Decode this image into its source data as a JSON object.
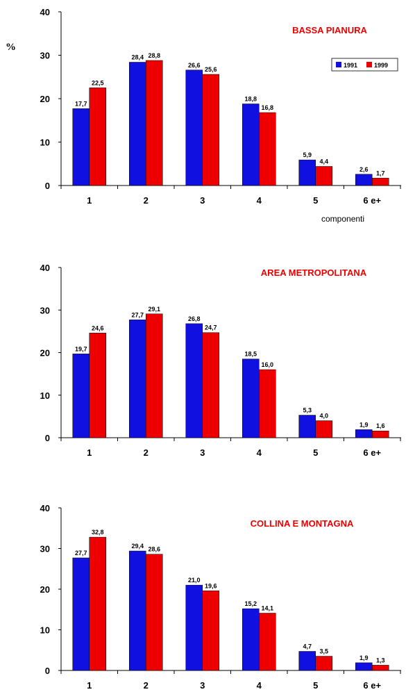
{
  "y_unit_label": "%",
  "x_axis_label": "componenti",
  "legend": {
    "entries": [
      "1991",
      "1999"
    ],
    "colors": [
      "#1010e0",
      "#ee0000"
    ]
  },
  "chart_data": [
    {
      "type": "bar",
      "title": "BASSA PIANURA",
      "categories": [
        "1",
        "2",
        "3",
        "4",
        "5",
        "6 e+"
      ],
      "series": [
        {
          "name": "1991",
          "color": "#1010e0",
          "values": [
            17.7,
            28.4,
            26.6,
            18.8,
            5.9,
            2.6
          ]
        },
        {
          "name": "1999",
          "color": "#ee0000",
          "values": [
            22.5,
            28.8,
            25.6,
            16.8,
            4.4,
            1.7
          ]
        }
      ],
      "data_labels": [
        [
          "17,7",
          "28,4",
          "26,6",
          "18,8",
          "5,9",
          "2,6"
        ],
        [
          "22,5",
          "28,8",
          "25,6",
          "16,8",
          "4,4",
          "1,7"
        ]
      ],
      "yticks": [
        "0",
        "10",
        "20",
        "30",
        "40"
      ],
      "ylim": [
        0,
        40
      ],
      "grid": false,
      "legend_position": "top-right"
    },
    {
      "type": "bar",
      "title": "AREA METROPOLITANA",
      "categories": [
        "1",
        "2",
        "3",
        "4",
        "5",
        "6 e+"
      ],
      "series": [
        {
          "name": "1991",
          "color": "#1010e0",
          "values": [
            19.7,
            27.7,
            26.8,
            18.5,
            5.3,
            1.9
          ]
        },
        {
          "name": "1999",
          "color": "#ee0000",
          "values": [
            24.6,
            29.1,
            24.7,
            16.0,
            4.0,
            1.6
          ]
        }
      ],
      "data_labels": [
        [
          "19,7",
          "27,7",
          "26,8",
          "18,5",
          "5,3",
          "1,9"
        ],
        [
          "24,6",
          "29,1",
          "24,7",
          "16,0",
          "4,0",
          "1,6"
        ]
      ],
      "yticks": [
        "0",
        "10",
        "20",
        "30",
        "40"
      ],
      "ylim": [
        0,
        40
      ],
      "grid": false
    },
    {
      "type": "bar",
      "title": "COLLINA E MONTAGNA",
      "categories": [
        "1",
        "2",
        "3",
        "4",
        "5",
        "6 e+"
      ],
      "series": [
        {
          "name": "1991",
          "color": "#1010e0",
          "values": [
            27.7,
            29.4,
            21.0,
            15.2,
            4.7,
            1.9
          ]
        },
        {
          "name": "1999",
          "color": "#ee0000",
          "values": [
            32.8,
            28.6,
            19.6,
            14.1,
            3.5,
            1.3
          ]
        }
      ],
      "data_labels": [
        [
          "27,7",
          "29,4",
          "21,0",
          "15,2",
          "4,7",
          "1,9"
        ],
        [
          "32,8",
          "28,6",
          "19,6",
          "14,1",
          "3,5",
          "1,3"
        ]
      ],
      "yticks": [
        "0",
        "10",
        "20",
        "30",
        "40"
      ],
      "ylim": [
        0,
        40
      ],
      "grid": false
    }
  ]
}
